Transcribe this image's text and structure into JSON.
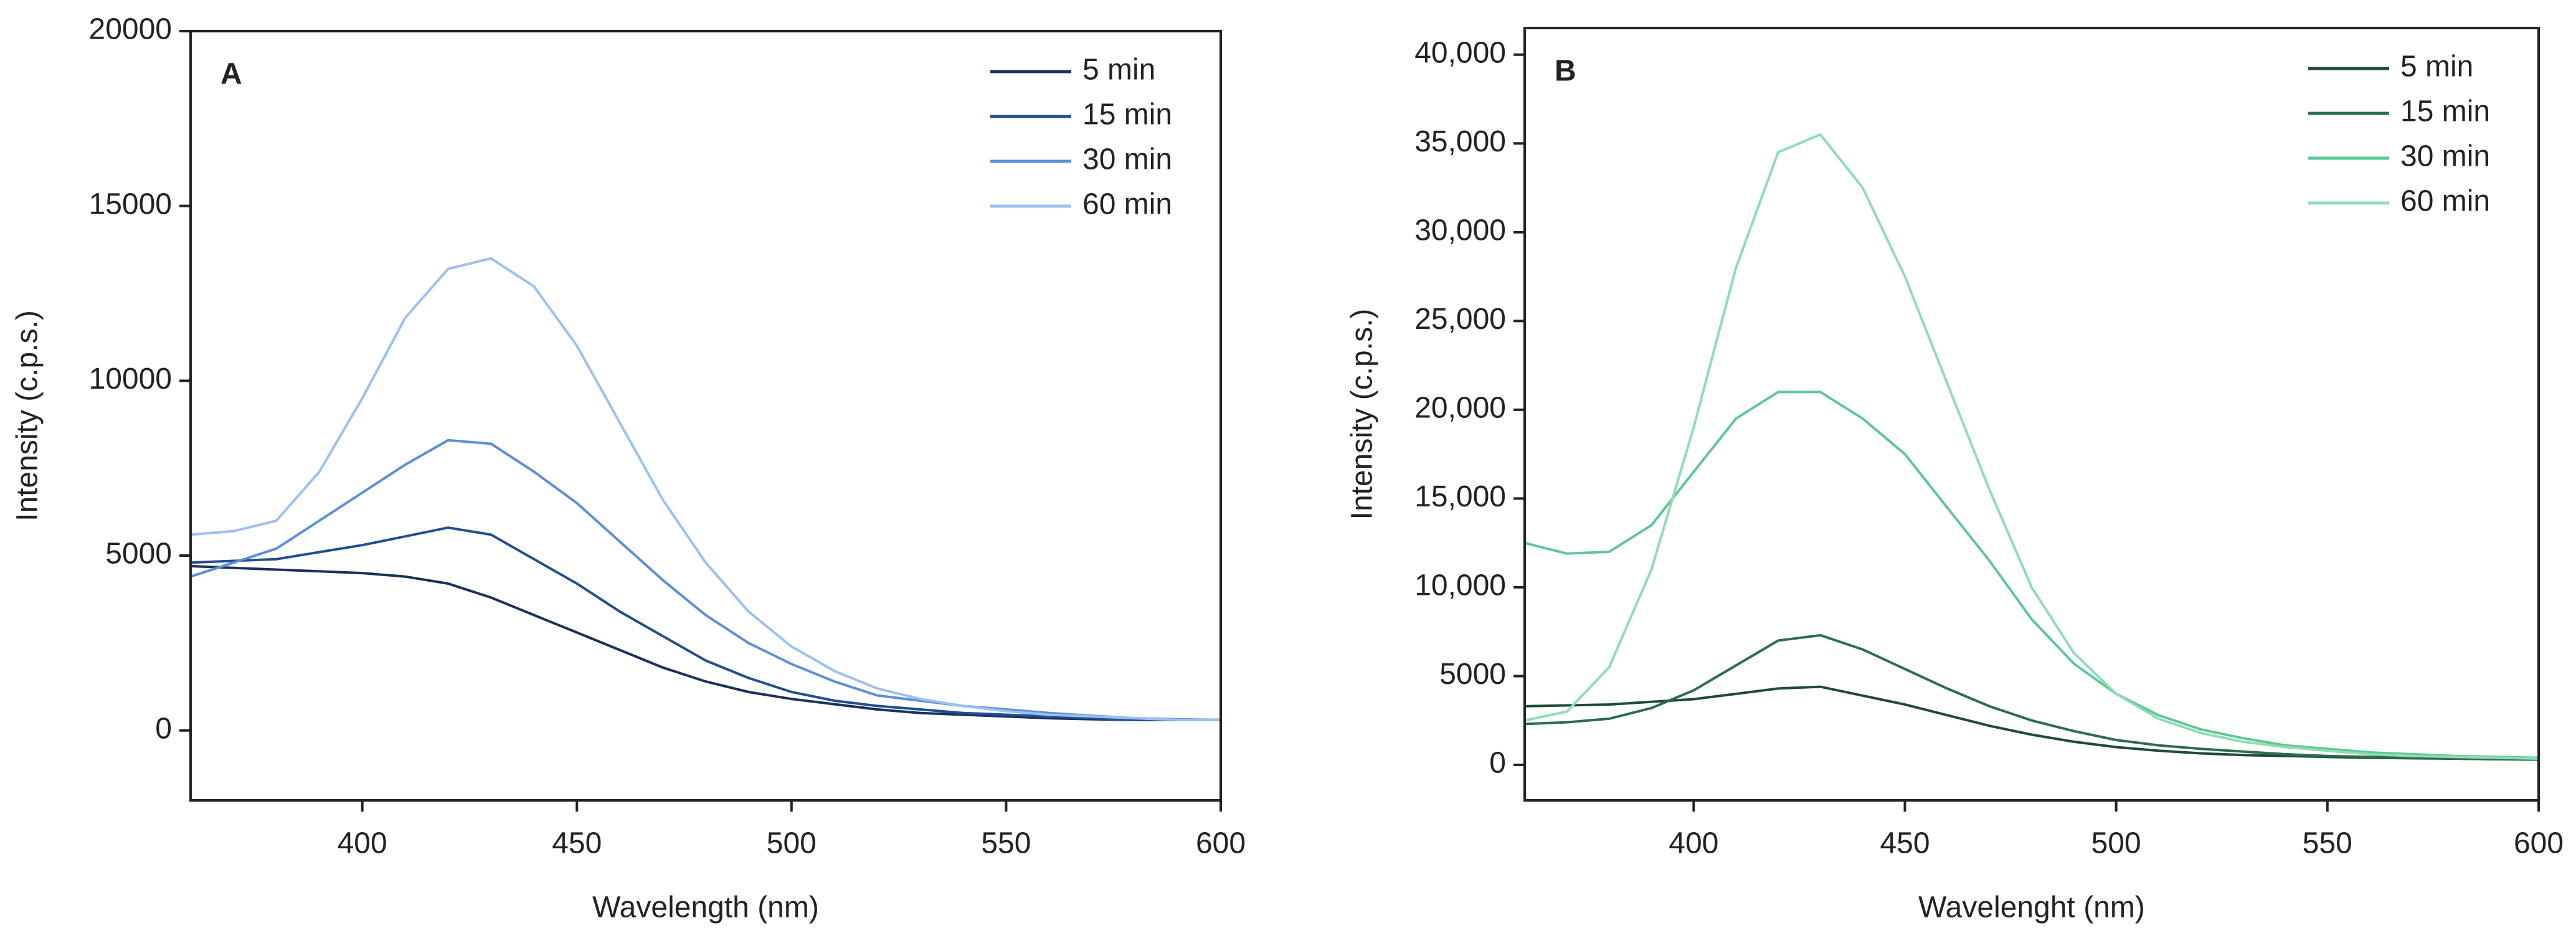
{
  "chart_data": [
    {
      "type": "line",
      "title": "A",
      "xlabel": "Wavelength (nm)",
      "ylabel": "Intensity (c.p.s.)",
      "x": [
        360,
        370,
        380,
        390,
        400,
        410,
        420,
        430,
        440,
        450,
        460,
        470,
        480,
        490,
        500,
        510,
        520,
        530,
        540,
        550,
        560,
        570,
        580,
        590,
        600
      ],
      "xlim": [
        360,
        600
      ],
      "xticks": [
        400,
        450,
        500,
        550,
        600
      ],
      "ylim": [
        -2000,
        20000
      ],
      "yticks": [
        0,
        5000,
        10000,
        15000,
        20000
      ],
      "legend": "upper right",
      "series": [
        {
          "name": "5 min",
          "color": "#1b2f5c",
          "values": [
            4700,
            4650,
            4600,
            4550,
            4500,
            4400,
            4200,
            3800,
            3300,
            2800,
            2300,
            1800,
            1400,
            1100,
            900,
            750,
            600,
            500,
            450,
            400,
            350,
            320,
            300,
            300,
            300
          ]
        },
        {
          "name": "15 min",
          "color": "#1f4f8f",
          "values": [
            4800,
            4850,
            4900,
            5100,
            5300,
            5550,
            5800,
            5600,
            4900,
            4200,
            3400,
            2700,
            2000,
            1500,
            1100,
            850,
            700,
            600,
            500,
            450,
            400,
            350,
            300,
            300,
            300
          ]
        },
        {
          "name": "30 min",
          "color": "#5b8fd6",
          "values": [
            4400,
            4800,
            5200,
            6000,
            6800,
            7600,
            8300,
            8200,
            7400,
            6500,
            5400,
            4300,
            3300,
            2500,
            1900,
            1400,
            1000,
            850,
            700,
            600,
            500,
            420,
            350,
            320,
            300
          ]
        },
        {
          "name": "60 min",
          "color": "#9cc0ee",
          "values": [
            5600,
            5700,
            6000,
            7400,
            9500,
            11800,
            13200,
            13500,
            12700,
            11000,
            8800,
            6600,
            4800,
            3400,
            2400,
            1700,
            1200,
            900,
            700,
            550,
            450,
            400,
            350,
            300,
            300
          ]
        }
      ]
    },
    {
      "type": "line",
      "title": "B",
      "xlabel": "Wavelenght (nm)",
      "ylabel": "Intensity (c.p.s.)",
      "x": [
        360,
        370,
        380,
        390,
        400,
        410,
        420,
        430,
        440,
        450,
        460,
        470,
        480,
        490,
        500,
        510,
        520,
        530,
        540,
        550,
        560,
        570,
        580,
        590,
        600
      ],
      "xlim": [
        360,
        600
      ],
      "xticks": [
        400,
        450,
        500,
        550,
        600
      ],
      "ylim": [
        -2000,
        41500
      ],
      "yticks": [
        0,
        5000,
        {
          "value": 10000,
          "label": "10,000"
        },
        {
          "value": 15000,
          "label": "15,000"
        },
        {
          "value": 20000,
          "label": "20,000"
        },
        {
          "value": 25000,
          "label": "25,000"
        },
        {
          "value": 30000,
          "label": "30,000"
        },
        {
          "value": 35000,
          "label": "35,000"
        },
        {
          "value": 40000,
          "label": "40,000"
        }
      ],
      "legend": "upper right",
      "series": [
        {
          "name": "5 min",
          "color": "#1e4a36",
          "values": [
            3300,
            3350,
            3400,
            3550,
            3700,
            4000,
            4300,
            4400,
            3900,
            3400,
            2800,
            2200,
            1700,
            1300,
            1000,
            800,
            650,
            550,
            500,
            450,
            400,
            370,
            350,
            320,
            300
          ]
        },
        {
          "name": "15 min",
          "color": "#2a6e4e",
          "values": [
            2300,
            2400,
            2600,
            3200,
            4200,
            5600,
            7000,
            7300,
            6500,
            5400,
            4300,
            3300,
            2500,
            1900,
            1400,
            1100,
            900,
            750,
            600,
            500,
            450,
            400,
            350,
            320,
            300
          ]
        },
        {
          "name": "30 min",
          "color": "#5fc795",
          "values": [
            12500,
            11900,
            12000,
            13500,
            16500,
            19500,
            21000,
            21000,
            19500,
            17500,
            14500,
            11500,
            8200,
            5700,
            4000,
            2800,
            2000,
            1500,
            1100,
            900,
            700,
            600,
            500,
            450,
            400
          ]
        },
        {
          "name": "60 min",
          "color": "#8fdcb5",
          "values": [
            2500,
            3000,
            5500,
            11000,
            19000,
            28000,
            34500,
            35500,
            32500,
            27500,
            21500,
            15500,
            10000,
            6300,
            4000,
            2600,
            1800,
            1300,
            1000,
            800,
            600,
            500,
            450,
            400,
            350
          ]
        }
      ]
    }
  ]
}
